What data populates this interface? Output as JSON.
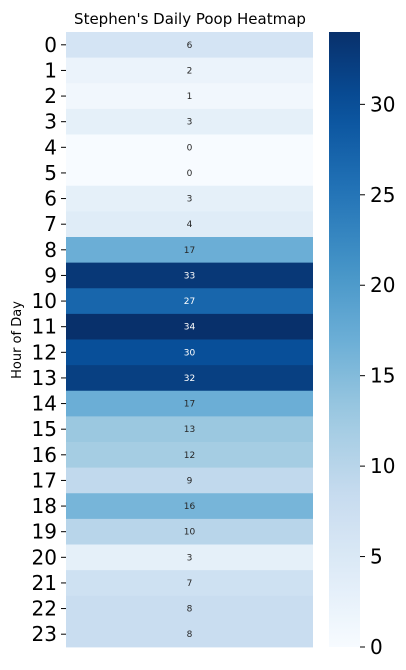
{
  "chart_data": {
    "type": "heatmap",
    "title": "Stephen's Daily Poop Heatmap",
    "ylabel": "Hour of Day",
    "xlabel": "",
    "rows": [
      "0",
      "1",
      "2",
      "3",
      "4",
      "5",
      "6",
      "7",
      "8",
      "9",
      "10",
      "11",
      "12",
      "13",
      "14",
      "15",
      "16",
      "17",
      "18",
      "19",
      "20",
      "21",
      "22",
      "23"
    ],
    "values": [
      6,
      2,
      1,
      3,
      0,
      0,
      3,
      4,
      17,
      33,
      27,
      34,
      30,
      32,
      17,
      13,
      12,
      9,
      16,
      10,
      3,
      7,
      8,
      8
    ],
    "colormap": "Blues",
    "vmin": 0,
    "vmax": 34,
    "colorbar_ticks": [
      0,
      5,
      10,
      15,
      20,
      25,
      30
    ]
  }
}
